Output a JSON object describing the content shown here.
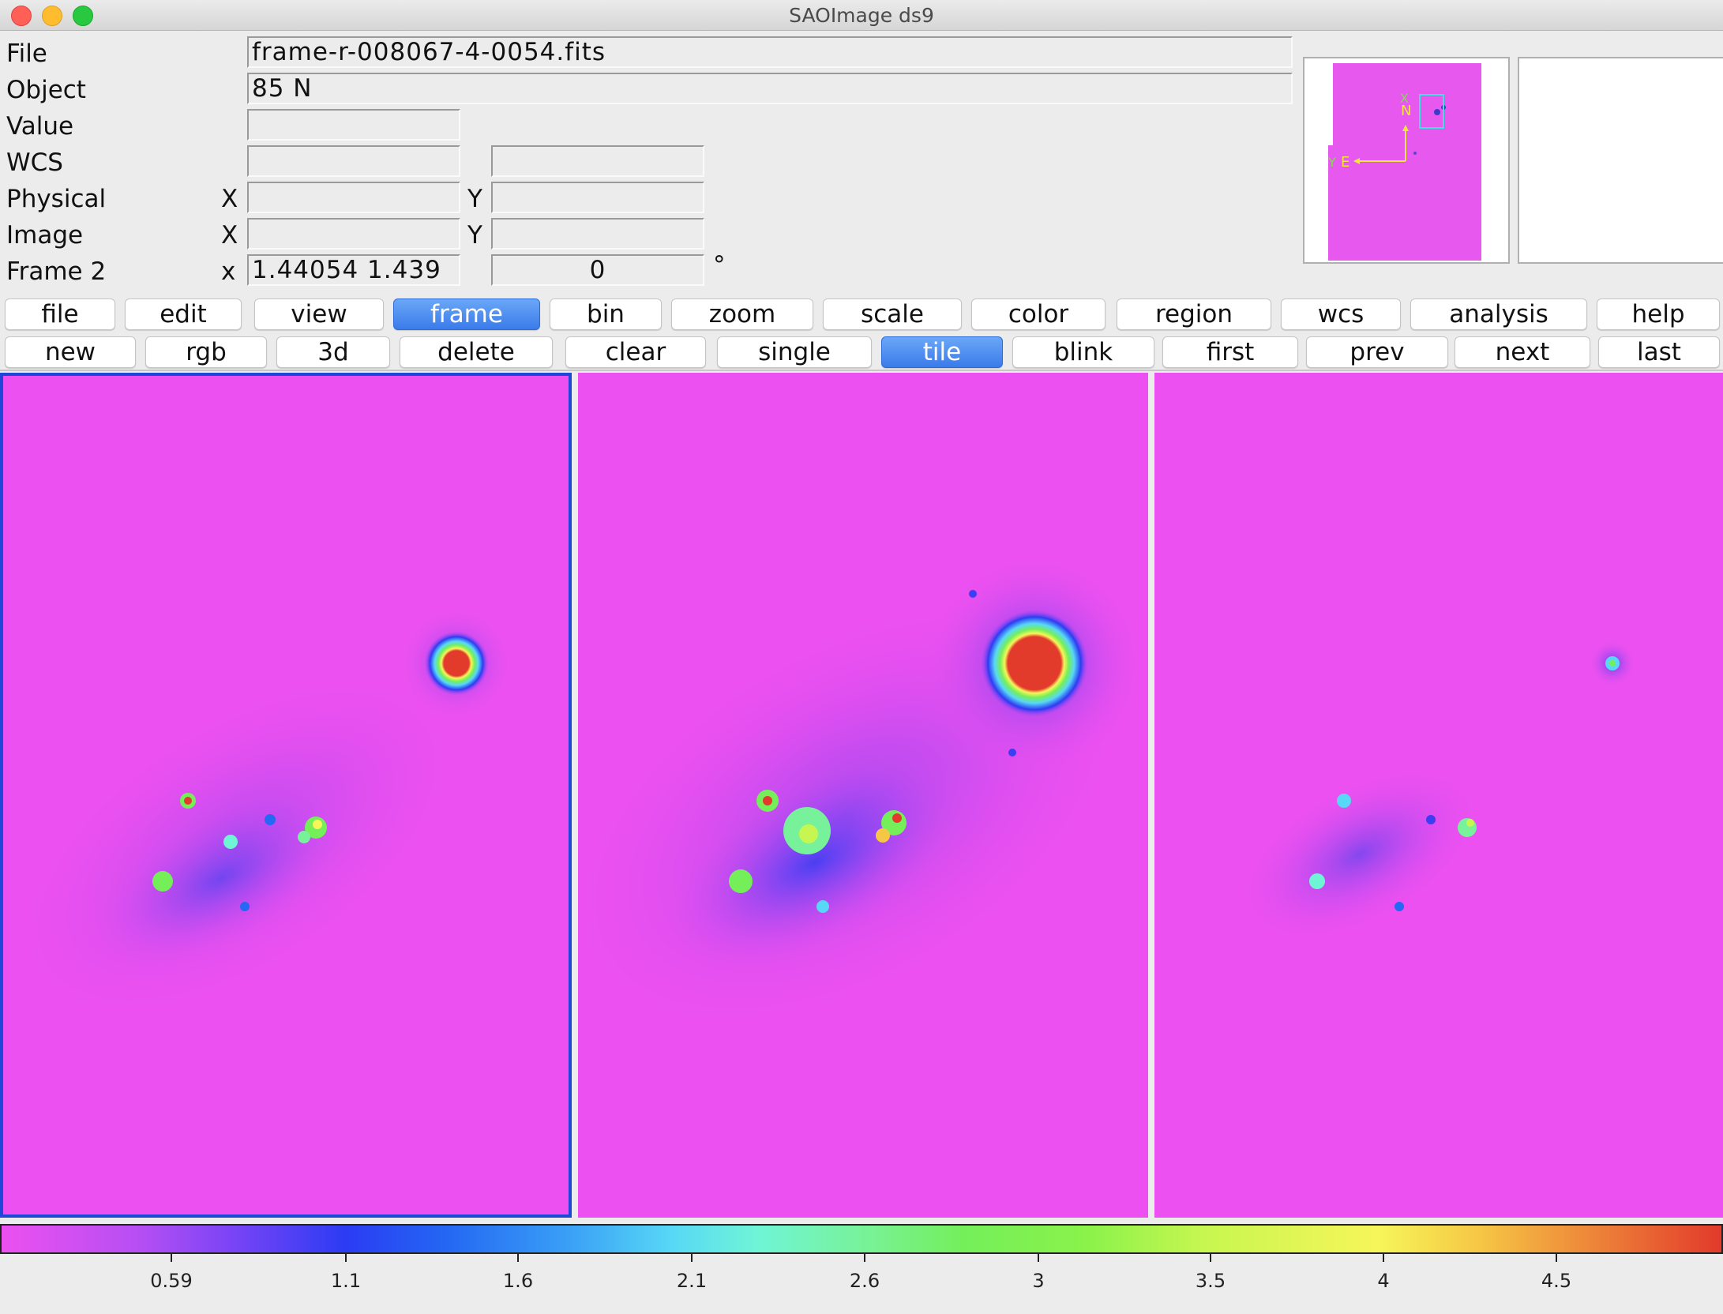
{
  "window": {
    "title": "SAOImage ds9"
  },
  "info": {
    "file_label": "File",
    "file_value": "frame-r-008067-4-0054.fits",
    "object_label": "Object",
    "object_value": "85 N",
    "value_label": "Value",
    "value_value": "",
    "wcs_label": "WCS",
    "wcs_value1": "",
    "wcs_value2": "",
    "physical_label": "Physical",
    "physical_x_label": "X",
    "physical_x": "",
    "physical_y_label": "Y",
    "physical_y": "",
    "image_label": "Image",
    "image_x_label": "X",
    "image_x": "",
    "image_y_label": "Y",
    "image_y": "",
    "frame_label": "Frame 2",
    "frame_x_label": "x",
    "zoom_value": "1.44054  1.439",
    "angle_value": "0",
    "angle_unit": "°"
  },
  "panner": {
    "north_label": "N",
    "east_label": "E",
    "x_label": "X",
    "y_label": "Y"
  },
  "menu": {
    "items": [
      "file",
      "edit",
      "view",
      "frame",
      "bin",
      "zoom",
      "scale",
      "color",
      "region",
      "wcs",
      "analysis",
      "help"
    ],
    "active": "frame"
  },
  "frame_buttons": {
    "items": [
      "new",
      "rgb",
      "3d",
      "delete",
      "clear",
      "single",
      "tile",
      "blink",
      "first",
      "prev",
      "next",
      "last"
    ],
    "active": "tile"
  },
  "frames": {
    "count": 3,
    "current": 1,
    "background_color": "#ec50f0"
  },
  "colorbar": {
    "ticks": [
      "0.59",
      "1.1",
      "1.6",
      "2.1",
      "2.6",
      "3",
      "3.5",
      "4",
      "4.5"
    ],
    "colors": [
      "#ec50f0",
      "#2b3cf3",
      "#58d8f6",
      "#74ef5a",
      "#f6f659",
      "#e23a2b"
    ]
  }
}
